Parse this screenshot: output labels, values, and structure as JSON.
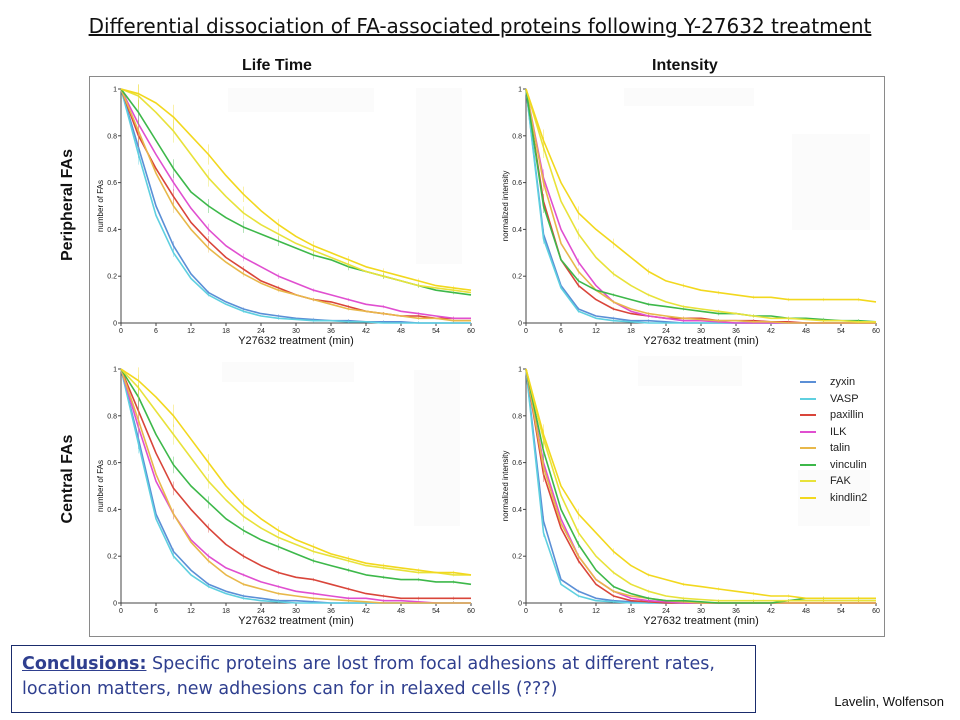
{
  "slide": {
    "title": "Differential dissociation of FA-associated proteins following Y-27632 treatment",
    "col_headers": [
      "Life Time",
      "Intensity"
    ],
    "row_headers": [
      "Peripheral FAs",
      "Central FAs"
    ],
    "conclusions_lead": "Conclusions:",
    "conclusions_text": " Specific proteins are lost from focal adhesions at different rates, location matters, new adhesions can for in relaxed cells (???)",
    "credit": "Lavelin, Wolfenson"
  },
  "legend": [
    {
      "name": "zyxin",
      "color": "#5b8fd6"
    },
    {
      "name": "VASP",
      "color": "#5fd0e0"
    },
    {
      "name": "paxillin",
      "color": "#d9453a"
    },
    {
      "name": "ILK",
      "color": "#e04fd0"
    },
    {
      "name": "talin",
      "color": "#e8b84a"
    },
    {
      "name": "vinculin",
      "color": "#3db84a"
    },
    {
      "name": "FAK",
      "color": "#e8e23a"
    },
    {
      "name": "kindlin2",
      "color": "#f2d81e"
    }
  ],
  "chart_data": [
    {
      "type": "line",
      "id": "peripheral-lifetime",
      "xlabel": "Y27632 treatment (min)",
      "ylabel": "number of FAs",
      "xlim": [
        0,
        60
      ],
      "ylim": [
        0,
        1
      ],
      "x_ticks": [
        0,
        6,
        12,
        18,
        24,
        30,
        36,
        42,
        48,
        54,
        60
      ],
      "y_ticks": [
        0,
        0.2,
        0.4,
        0.6,
        0.8,
        1
      ],
      "x": [
        0,
        3,
        6,
        9,
        12,
        15,
        18,
        21,
        24,
        27,
        30,
        33,
        36,
        39,
        42,
        45,
        48,
        51,
        54,
        57,
        60
      ],
      "series": [
        {
          "name": "zyxin",
          "values": [
            1,
            0.75,
            0.5,
            0.33,
            0.21,
            0.13,
            0.09,
            0.06,
            0.04,
            0.03,
            0.02,
            0.015,
            0.01,
            0.01,
            0.005,
            0.005,
            0.005,
            0,
            0,
            0,
            0
          ]
        },
        {
          "name": "VASP",
          "values": [
            1,
            0.72,
            0.46,
            0.3,
            0.19,
            0.12,
            0.08,
            0.05,
            0.03,
            0.02,
            0.015,
            0.01,
            0.01,
            0.005,
            0.005,
            0,
            0,
            0,
            0,
            0,
            0
          ]
        },
        {
          "name": "paxillin",
          "values": [
            1,
            0.8,
            0.66,
            0.54,
            0.43,
            0.35,
            0.28,
            0.23,
            0.18,
            0.15,
            0.12,
            0.1,
            0.09,
            0.07,
            0.05,
            0.04,
            0.03,
            0.03,
            0.02,
            0.02,
            0.02
          ]
        },
        {
          "name": "ILK",
          "values": [
            1,
            0.85,
            0.72,
            0.6,
            0.49,
            0.4,
            0.33,
            0.28,
            0.24,
            0.2,
            0.17,
            0.14,
            0.12,
            0.1,
            0.08,
            0.07,
            0.05,
            0.04,
            0.03,
            0.02,
            0.02
          ]
        },
        {
          "name": "talin",
          "values": [
            1,
            0.82,
            0.64,
            0.5,
            0.4,
            0.32,
            0.26,
            0.21,
            0.17,
            0.14,
            0.12,
            0.1,
            0.08,
            0.06,
            0.05,
            0.04,
            0.03,
            0.02,
            0.02,
            0.01,
            0.01
          ]
        },
        {
          "name": "vinculin",
          "values": [
            1,
            0.9,
            0.78,
            0.66,
            0.56,
            0.5,
            0.45,
            0.41,
            0.38,
            0.35,
            0.32,
            0.29,
            0.27,
            0.24,
            0.22,
            0.2,
            0.18,
            0.16,
            0.14,
            0.13,
            0.12
          ]
        },
        {
          "name": "FAK",
          "values": [
            1,
            0.97,
            0.9,
            0.82,
            0.72,
            0.62,
            0.54,
            0.47,
            0.42,
            0.38,
            0.34,
            0.31,
            0.28,
            0.25,
            0.22,
            0.2,
            0.18,
            0.16,
            0.15,
            0.14,
            0.13
          ]
        },
        {
          "name": "kindlin2",
          "values": [
            1,
            0.98,
            0.94,
            0.88,
            0.8,
            0.72,
            0.63,
            0.55,
            0.48,
            0.42,
            0.37,
            0.33,
            0.3,
            0.27,
            0.24,
            0.22,
            0.2,
            0.18,
            0.16,
            0.15,
            0.14
          ]
        }
      ]
    },
    {
      "type": "line",
      "id": "peripheral-intensity",
      "xlabel": "Y27632 treatment (min)",
      "ylabel": "normalized intensity",
      "xlim": [
        0,
        60
      ],
      "ylim": [
        0,
        1
      ],
      "x_ticks": [
        0,
        6,
        12,
        18,
        24,
        30,
        36,
        42,
        48,
        54,
        60
      ],
      "y_ticks": [
        0,
        0.2,
        0.4,
        0.6,
        0.8,
        1
      ],
      "x": [
        0,
        3,
        6,
        9,
        12,
        15,
        18,
        21,
        24,
        27,
        30,
        33,
        36,
        39,
        42,
        45,
        48,
        51,
        54,
        57,
        60
      ],
      "series": [
        {
          "name": "zyxin",
          "values": [
            1,
            0.38,
            0.16,
            0.06,
            0.03,
            0.02,
            0.01,
            0.01,
            0.005,
            0,
            0,
            0,
            0,
            0,
            0,
            0,
            0,
            0,
            0,
            0,
            0
          ]
        },
        {
          "name": "VASP",
          "values": [
            1,
            0.36,
            0.15,
            0.05,
            0.02,
            0.01,
            0.005,
            0,
            0,
            0,
            0,
            0,
            0,
            0,
            0,
            0,
            0,
            0,
            0,
            0,
            0
          ]
        },
        {
          "name": "paxillin",
          "values": [
            1,
            0.52,
            0.27,
            0.16,
            0.1,
            0.06,
            0.04,
            0.03,
            0.02,
            0.02,
            0.02,
            0.01,
            0.01,
            0.01,
            0.005,
            0.005,
            0,
            0,
            0,
            0,
            0
          ]
        },
        {
          "name": "ILK",
          "values": [
            1,
            0.62,
            0.4,
            0.26,
            0.16,
            0.09,
            0.05,
            0.03,
            0.02,
            0.01,
            0.01,
            0.005,
            0,
            0,
            0,
            0,
            0,
            0,
            0,
            0,
            0
          ]
        },
        {
          "name": "talin",
          "values": [
            1,
            0.6,
            0.34,
            0.22,
            0.14,
            0.09,
            0.06,
            0.04,
            0.03,
            0.02,
            0.015,
            0.01,
            0.01,
            0.005,
            0.005,
            0,
            0,
            0,
            0,
            0,
            0
          ]
        },
        {
          "name": "vinculin",
          "values": [
            1,
            0.5,
            0.27,
            0.18,
            0.14,
            0.12,
            0.1,
            0.08,
            0.07,
            0.06,
            0.05,
            0.04,
            0.04,
            0.03,
            0.03,
            0.02,
            0.02,
            0.015,
            0.01,
            0.01,
            0.005
          ]
        },
        {
          "name": "FAK",
          "values": [
            1,
            0.75,
            0.52,
            0.38,
            0.28,
            0.21,
            0.16,
            0.12,
            0.09,
            0.07,
            0.06,
            0.05,
            0.04,
            0.03,
            0.02,
            0.02,
            0.015,
            0.01,
            0.01,
            0.005,
            0.005
          ]
        },
        {
          "name": "kindlin2",
          "values": [
            1,
            0.78,
            0.6,
            0.47,
            0.4,
            0.34,
            0.28,
            0.22,
            0.18,
            0.16,
            0.14,
            0.13,
            0.12,
            0.11,
            0.11,
            0.1,
            0.1,
            0.1,
            0.1,
            0.1,
            0.09
          ]
        }
      ]
    },
    {
      "type": "line",
      "id": "central-lifetime",
      "xlabel": "Y27632 treatment (min)",
      "ylabel": "number of FAs",
      "xlim": [
        0,
        60
      ],
      "ylim": [
        0,
        1
      ],
      "x_ticks": [
        0,
        6,
        12,
        18,
        24,
        30,
        36,
        42,
        48,
        54,
        60
      ],
      "y_ticks": [
        0,
        0.2,
        0.4,
        0.6,
        0.8,
        1
      ],
      "x": [
        0,
        3,
        6,
        9,
        12,
        15,
        18,
        21,
        24,
        27,
        30,
        33,
        36,
        39,
        42,
        45,
        48,
        51,
        54,
        57,
        60
      ],
      "series": [
        {
          "name": "zyxin",
          "values": [
            1,
            0.7,
            0.38,
            0.22,
            0.14,
            0.08,
            0.05,
            0.03,
            0.02,
            0.01,
            0.01,
            0.005,
            0,
            0,
            0,
            0,
            0,
            0,
            0,
            0,
            0
          ]
        },
        {
          "name": "VASP",
          "values": [
            1,
            0.68,
            0.36,
            0.2,
            0.12,
            0.07,
            0.04,
            0.02,
            0.01,
            0.005,
            0,
            0,
            0,
            0,
            0,
            0,
            0,
            0,
            0,
            0,
            0
          ]
        },
        {
          "name": "paxillin",
          "values": [
            1,
            0.82,
            0.64,
            0.49,
            0.4,
            0.32,
            0.25,
            0.2,
            0.16,
            0.13,
            0.11,
            0.1,
            0.08,
            0.06,
            0.04,
            0.03,
            0.02,
            0.02,
            0.02,
            0.02,
            0.02
          ]
        },
        {
          "name": "ILK",
          "values": [
            1,
            0.75,
            0.52,
            0.38,
            0.27,
            0.2,
            0.15,
            0.12,
            0.09,
            0.07,
            0.05,
            0.04,
            0.03,
            0.02,
            0.02,
            0.01,
            0.01,
            0.005,
            0,
            0,
            0
          ]
        },
        {
          "name": "talin",
          "values": [
            1,
            0.78,
            0.55,
            0.38,
            0.26,
            0.18,
            0.12,
            0.08,
            0.06,
            0.04,
            0.03,
            0.02,
            0.015,
            0.01,
            0.005,
            0,
            0,
            0,
            0,
            0,
            0
          ]
        },
        {
          "name": "vinculin",
          "values": [
            1,
            0.88,
            0.72,
            0.59,
            0.5,
            0.43,
            0.36,
            0.31,
            0.27,
            0.24,
            0.21,
            0.18,
            0.16,
            0.14,
            0.12,
            0.11,
            0.1,
            0.1,
            0.09,
            0.09,
            0.08
          ]
        },
        {
          "name": "FAK",
          "values": [
            1,
            0.92,
            0.82,
            0.72,
            0.62,
            0.52,
            0.44,
            0.37,
            0.32,
            0.28,
            0.25,
            0.22,
            0.2,
            0.18,
            0.16,
            0.15,
            0.14,
            0.13,
            0.13,
            0.12,
            0.12
          ]
        },
        {
          "name": "kindlin2",
          "values": [
            1,
            0.95,
            0.88,
            0.8,
            0.7,
            0.6,
            0.5,
            0.42,
            0.36,
            0.31,
            0.27,
            0.24,
            0.21,
            0.19,
            0.17,
            0.16,
            0.15,
            0.14,
            0.13,
            0.13,
            0.12
          ]
        }
      ]
    },
    {
      "type": "line",
      "id": "central-intensity",
      "xlabel": "Y27632 treatment (min)",
      "ylabel": "normalized intensity",
      "xlim": [
        0,
        60
      ],
      "ylim": [
        0,
        1
      ],
      "x_ticks": [
        0,
        6,
        12,
        18,
        24,
        30,
        36,
        42,
        48,
        54,
        60
      ],
      "y_ticks": [
        0,
        0.2,
        0.4,
        0.6,
        0.8,
        1
      ],
      "x": [
        0,
        3,
        6,
        9,
        12,
        15,
        18,
        21,
        24,
        27,
        30,
        33,
        36,
        39,
        42,
        45,
        48,
        51,
        54,
        57,
        60
      ],
      "series": [
        {
          "name": "zyxin",
          "values": [
            1,
            0.35,
            0.1,
            0.05,
            0.02,
            0.01,
            0.005,
            0,
            0,
            0,
            0,
            0,
            0,
            0,
            0,
            0,
            0,
            0,
            0,
            0,
            0
          ]
        },
        {
          "name": "VASP",
          "values": [
            1,
            0.3,
            0.08,
            0.03,
            0.01,
            0.005,
            0,
            0,
            0,
            0,
            0,
            0,
            0,
            0,
            0,
            0,
            0,
            0,
            0,
            0,
            0
          ]
        },
        {
          "name": "paxillin",
          "values": [
            1,
            0.55,
            0.32,
            0.18,
            0.08,
            0.03,
            0.01,
            0.005,
            0,
            0,
            0,
            0,
            0,
            0,
            0,
            0,
            0,
            0,
            0,
            0,
            0
          ]
        },
        {
          "name": "ILK",
          "values": [
            1,
            0.6,
            0.36,
            0.2,
            0.1,
            0.05,
            0.02,
            0.01,
            0.005,
            0,
            0,
            0,
            0,
            0,
            0,
            0,
            0,
            0,
            0,
            0,
            0
          ]
        },
        {
          "name": "talin",
          "values": [
            1,
            0.58,
            0.34,
            0.2,
            0.1,
            0.05,
            0.03,
            0.02,
            0.01,
            0.005,
            0,
            0,
            0,
            0,
            0,
            0,
            0,
            0,
            0,
            0,
            0
          ]
        },
        {
          "name": "vinculin",
          "values": [
            1,
            0.65,
            0.4,
            0.25,
            0.14,
            0.07,
            0.04,
            0.02,
            0.01,
            0.01,
            0.005,
            0,
            0,
            0,
            0,
            0.01,
            0.02,
            0.02,
            0.02,
            0.02,
            0.02
          ]
        },
        {
          "name": "FAK",
          "values": [
            1,
            0.7,
            0.46,
            0.3,
            0.2,
            0.13,
            0.08,
            0.05,
            0.03,
            0.02,
            0.015,
            0.01,
            0.01,
            0.01,
            0.01,
            0.01,
            0.01,
            0.01,
            0.01,
            0.01,
            0.01
          ]
        },
        {
          "name": "kindlin2",
          "values": [
            1,
            0.72,
            0.5,
            0.38,
            0.3,
            0.22,
            0.16,
            0.12,
            0.1,
            0.08,
            0.07,
            0.06,
            0.05,
            0.04,
            0.03,
            0.03,
            0.02,
            0.02,
            0.02,
            0.02,
            0.02
          ]
        }
      ]
    }
  ]
}
